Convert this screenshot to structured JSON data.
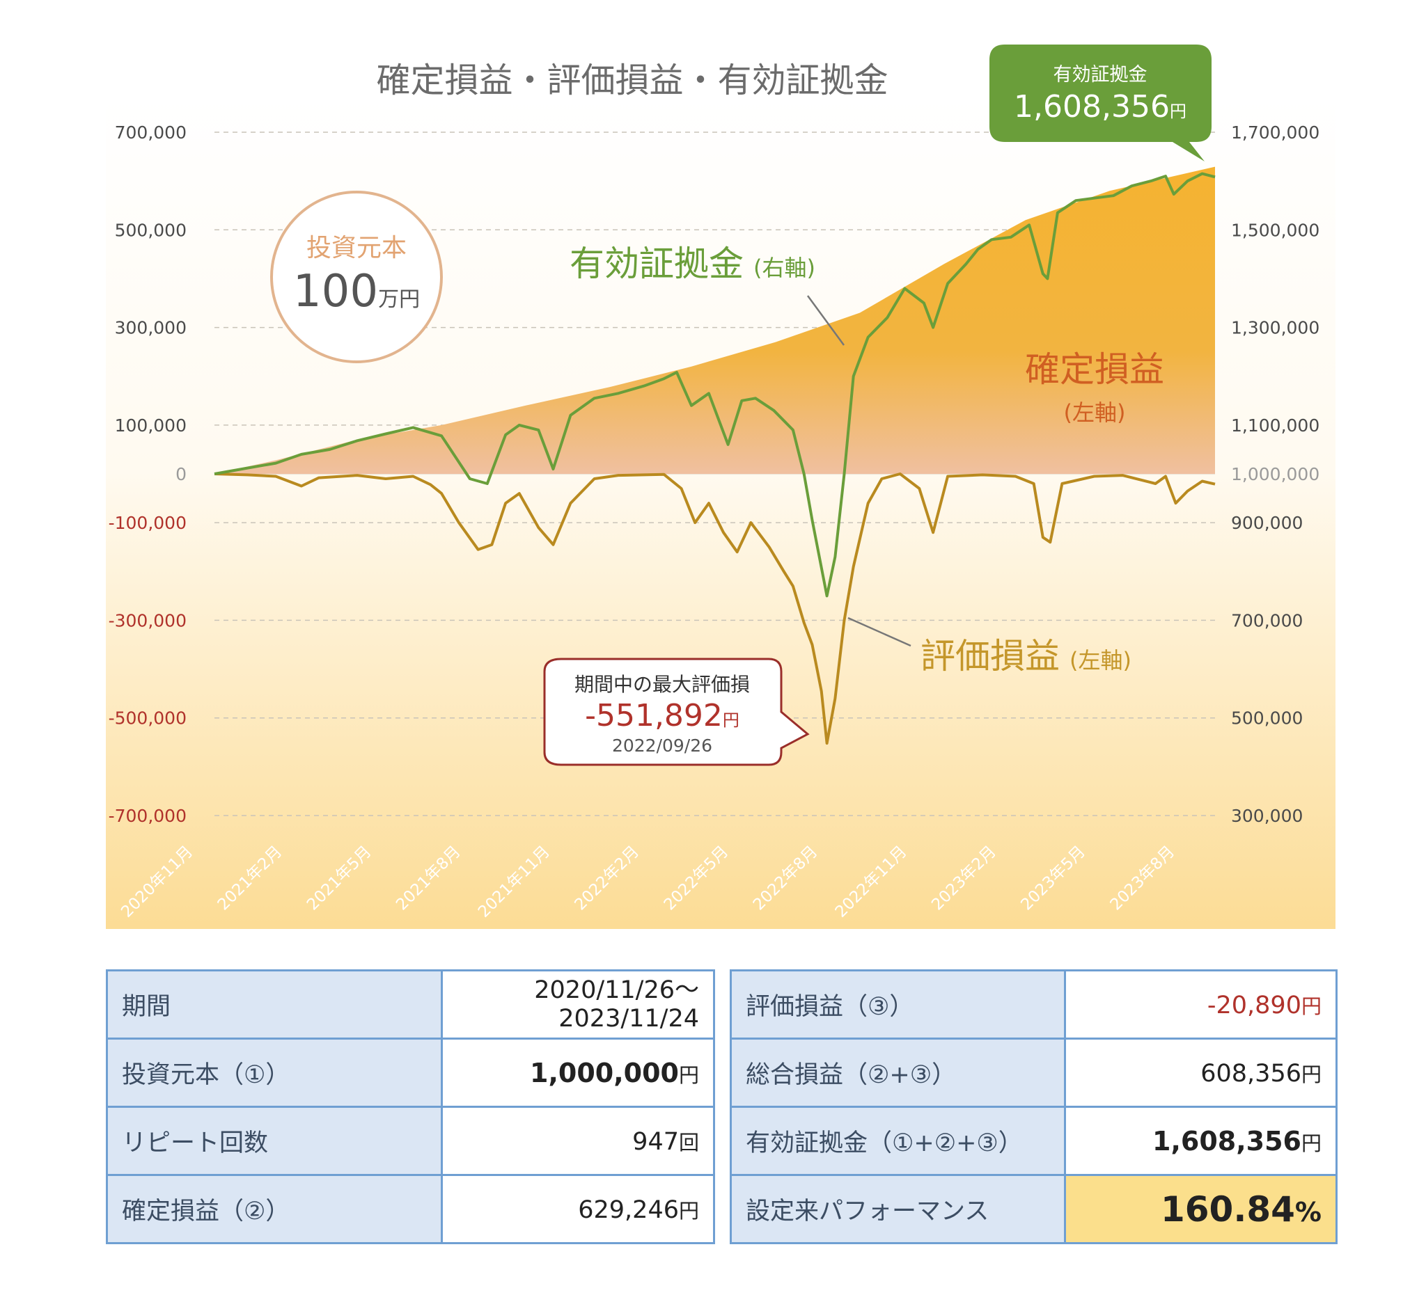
{
  "chart_data": {
    "type": "area+line",
    "title": "確定損益・評価損益・有効証拠金",
    "left_axis": {
      "ticks": [
        "700,000",
        "500,000",
        "300,000",
        "100,000",
        "0",
        "-100,000",
        "-300,000",
        "-500,000",
        "-700,000"
      ],
      "values": [
        700000,
        500000,
        300000,
        100000,
        0,
        -100000,
        -300000,
        -500000,
        -700000
      ],
      "range": [
        -700000,
        700000
      ]
    },
    "right_axis": {
      "ticks": [
        "1,700,000",
        "1,500,000",
        "1,300,000",
        "1,100,000",
        "1,000,000",
        "900,000",
        "700,000",
        "500,000",
        "300,000"
      ],
      "values": [
        1700000,
        1500000,
        1300000,
        1100000,
        1000000,
        900000,
        700000,
        500000,
        300000
      ],
      "range": [
        300000,
        1700000
      ]
    },
    "x_labels": [
      "2020年11月",
      "2021年2月",
      "2021年5月",
      "2021年8月",
      "2021年11月",
      "2022年2月",
      "2022年5月",
      "2022年8月",
      "2022年11月",
      "2023年2月",
      "2023年5月",
      "2023年8月"
    ],
    "x_range": [
      "2020-11-26",
      "2023-11-24"
    ],
    "series": [
      {
        "name": "確定損益",
        "axis": "left",
        "type": "area",
        "points": [
          [
            "2020-11-26",
            0
          ],
          [
            "2021-02-01",
            28000
          ],
          [
            "2021-05-01",
            70000
          ],
          [
            "2021-08-01",
            100000
          ],
          [
            "2021-11-01",
            140000
          ],
          [
            "2022-02-01",
            178000
          ],
          [
            "2022-05-01",
            220000
          ],
          [
            "2022-08-01",
            270000
          ],
          [
            "2022-11-01",
            330000
          ],
          [
            "2023-02-01",
            430000
          ],
          [
            "2023-05-01",
            520000
          ],
          [
            "2023-08-01",
            580000
          ],
          [
            "2023-11-24",
            629246
          ]
        ]
      },
      {
        "name": "有効証拠金",
        "axis": "right",
        "type": "line",
        "points": [
          [
            "2020-11-26",
            1000000
          ],
          [
            "2021-01-01",
            1012000
          ],
          [
            "2021-02-01",
            1022000
          ],
          [
            "2021-03-01",
            1040000
          ],
          [
            "2021-04-01",
            1050000
          ],
          [
            "2021-05-01",
            1068000
          ],
          [
            "2021-06-01",
            1082000
          ],
          [
            "2021-07-01",
            1095000
          ],
          [
            "2021-08-01",
            1078000
          ],
          [
            "2021-09-01",
            990000
          ],
          [
            "2021-09-20",
            980000
          ],
          [
            "2021-10-10",
            1080000
          ],
          [
            "2021-10-25",
            1100000
          ],
          [
            "2021-11-15",
            1090000
          ],
          [
            "2021-12-01",
            1010000
          ],
          [
            "2021-12-20",
            1120000
          ],
          [
            "2022-01-15",
            1155000
          ],
          [
            "2022-02-10",
            1165000
          ],
          [
            "2022-03-10",
            1180000
          ],
          [
            "2022-04-01",
            1195000
          ],
          [
            "2022-04-15",
            1208000
          ],
          [
            "2022-05-01",
            1140000
          ],
          [
            "2022-05-20",
            1165000
          ],
          [
            "2022-06-10",
            1060000
          ],
          [
            "2022-06-25",
            1150000
          ],
          [
            "2022-07-10",
            1155000
          ],
          [
            "2022-07-30",
            1130000
          ],
          [
            "2022-08-20",
            1090000
          ],
          [
            "2022-09-01",
            1000000
          ],
          [
            "2022-09-10",
            905000
          ],
          [
            "2022-09-26",
            750000
          ],
          [
            "2022-10-05",
            830000
          ],
          [
            "2022-10-15",
            1000000
          ],
          [
            "2022-10-25",
            1200000
          ],
          [
            "2022-11-10",
            1280000
          ],
          [
            "2022-12-01",
            1320000
          ],
          [
            "2022-12-20",
            1380000
          ],
          [
            "2023-01-10",
            1350000
          ],
          [
            "2023-01-20",
            1300000
          ],
          [
            "2023-02-05",
            1390000
          ],
          [
            "2023-02-25",
            1430000
          ],
          [
            "2023-03-10",
            1460000
          ],
          [
            "2023-03-25",
            1480000
          ],
          [
            "2023-04-15",
            1485000
          ],
          [
            "2023-05-05",
            1510000
          ],
          [
            "2023-05-20",
            1410000
          ],
          [
            "2023-05-25",
            1400000
          ],
          [
            "2023-06-05",
            1535000
          ],
          [
            "2023-06-25",
            1560000
          ],
          [
            "2023-07-15",
            1565000
          ],
          [
            "2023-08-05",
            1570000
          ],
          [
            "2023-08-25",
            1590000
          ],
          [
            "2023-09-15",
            1600000
          ],
          [
            "2023-10-01",
            1610000
          ],
          [
            "2023-10-10",
            1573000
          ],
          [
            "2023-10-25",
            1600000
          ],
          [
            "2023-11-10",
            1615000
          ],
          [
            "2023-11-24",
            1608356
          ]
        ]
      },
      {
        "name": "評価損益",
        "axis": "left",
        "type": "line",
        "points": [
          [
            "2020-11-26",
            0
          ],
          [
            "2021-01-01",
            -2000
          ],
          [
            "2021-02-01",
            -5000
          ],
          [
            "2021-03-01",
            -25000
          ],
          [
            "2021-03-20",
            -8000
          ],
          [
            "2021-05-01",
            -3000
          ],
          [
            "2021-06-01",
            -10000
          ],
          [
            "2021-07-01",
            -5000
          ],
          [
            "2021-07-20",
            -22000
          ],
          [
            "2021-08-01",
            -40000
          ],
          [
            "2021-08-20",
            -100000
          ],
          [
            "2021-09-10",
            -155000
          ],
          [
            "2021-09-25",
            -145000
          ],
          [
            "2021-10-10",
            -60000
          ],
          [
            "2021-10-25",
            -40000
          ],
          [
            "2021-11-15",
            -110000
          ],
          [
            "2021-12-01",
            -145000
          ],
          [
            "2021-12-20",
            -60000
          ],
          [
            "2022-01-15",
            -10000
          ],
          [
            "2022-02-10",
            -3000
          ],
          [
            "2022-04-01",
            -1000
          ],
          [
            "2022-04-20",
            -30000
          ],
          [
            "2022-05-05",
            -100000
          ],
          [
            "2022-05-20",
            -60000
          ],
          [
            "2022-06-05",
            -120000
          ],
          [
            "2022-06-20",
            -160000
          ],
          [
            "2022-07-05",
            -100000
          ],
          [
            "2022-07-25",
            -150000
          ],
          [
            "2022-08-10",
            -200000
          ],
          [
            "2022-08-20",
            -230000
          ],
          [
            "2022-09-01",
            -305000
          ],
          [
            "2022-09-10",
            -350000
          ],
          [
            "2022-09-20",
            -445000
          ],
          [
            "2022-09-26",
            -551892
          ],
          [
            "2022-10-05",
            -460000
          ],
          [
            "2022-10-15",
            -300000
          ],
          [
            "2022-10-25",
            -190000
          ],
          [
            "2022-11-10",
            -60000
          ],
          [
            "2022-11-25",
            -10000
          ],
          [
            "2022-12-15",
            0
          ],
          [
            "2023-01-05",
            -30000
          ],
          [
            "2023-01-20",
            -120000
          ],
          [
            "2023-02-05",
            -5000
          ],
          [
            "2023-03-15",
            -2000
          ],
          [
            "2023-04-20",
            -5000
          ],
          [
            "2023-05-10",
            -20000
          ],
          [
            "2023-05-20",
            -130000
          ],
          [
            "2023-05-28",
            -140000
          ],
          [
            "2023-06-10",
            -20000
          ],
          [
            "2023-07-15",
            -5000
          ],
          [
            "2023-08-15",
            -3000
          ],
          [
            "2023-09-20",
            -20000
          ],
          [
            "2023-10-01",
            -5000
          ],
          [
            "2023-10-12",
            -60000
          ],
          [
            "2023-10-25",
            -35000
          ],
          [
            "2023-11-10",
            -15000
          ],
          [
            "2023-11-24",
            -20890
          ]
        ]
      }
    ],
    "annotations": {
      "principal": {
        "label": "投資元本",
        "value": "100",
        "unit": "万円"
      },
      "equity_label": {
        "text": "有効証拠金",
        "axis_note": "(右軸)"
      },
      "realized_label": {
        "text": "確定損益",
        "axis_note": "(左軸)"
      },
      "unrealized_label": {
        "text": "評価損益",
        "axis_note": "(左軸)"
      },
      "max_drawdown": {
        "title": "期間中の最大評価損",
        "value": "-551,892",
        "unit": "円",
        "date": "2022/09/26"
      },
      "final_equity": {
        "title": "有効証拠金",
        "value": "1,608,356",
        "unit": "円"
      }
    },
    "colors": {
      "equity_line": "#6a9e3a",
      "unrealized_line": "#b98a1f",
      "area_top": "#f5b331",
      "area_bottom": "#f0c0a0",
      "negative_tick": "#b0322b",
      "callout_green": "#6a9e3a",
      "callout_border": "#9a2e2a",
      "principal_circle": "#e2b48e"
    },
    "grid": true
  },
  "table_left": [
    {
      "key": "期間",
      "value_line1": "2020/11/26〜",
      "value_line2": "2023/11/24"
    },
    {
      "key": "投資元本（①）",
      "value": "1,000,000",
      "unit": "円"
    },
    {
      "key": "リピート回数",
      "value": "947",
      "unit": "回"
    },
    {
      "key": "確定損益（②）",
      "value": "629,246",
      "unit": "円"
    }
  ],
  "table_right": [
    {
      "key": "評価損益（③）",
      "value": "-20,890",
      "unit": "円"
    },
    {
      "key": "総合損益（②+③）",
      "value": "608,356",
      "unit": "円"
    },
    {
      "key": "有効証拠金（①+②+③）",
      "value": "1,608,356",
      "unit": "円"
    },
    {
      "key": "設定来パフォーマンス",
      "value": "160.84",
      "unit": "%"
    }
  ]
}
